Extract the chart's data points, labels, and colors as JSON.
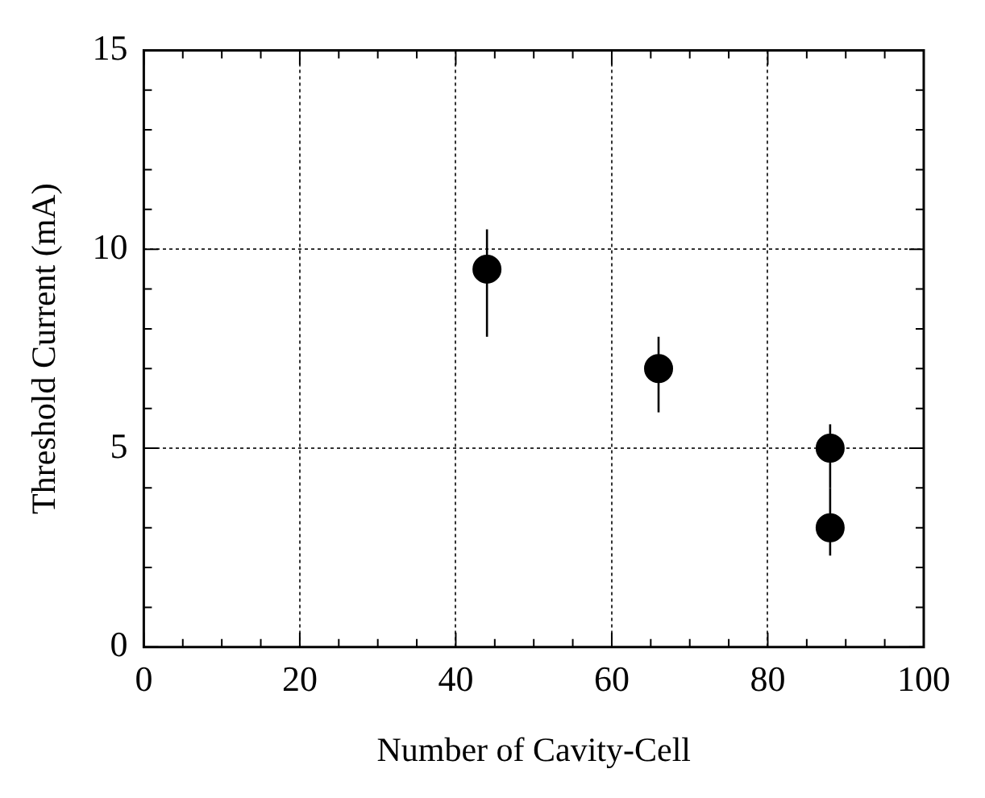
{
  "chart_data": {
    "type": "scatter",
    "xlabel": "Number of Cavity-Cell",
    "ylabel": "Threshold Current (mA)",
    "x": [
      44,
      66,
      88,
      88
    ],
    "values": [
      9.5,
      7.0,
      5.0,
      3.0
    ],
    "errors": [
      [
        7.8,
        10.5
      ],
      [
        5.9,
        7.8
      ],
      [
        4.0,
        5.6
      ],
      [
        2.3,
        4.0
      ]
    ],
    "color": "#000000",
    "marker": "circle",
    "grid": true,
    "legend": false,
    "xlim": [
      0,
      100
    ],
    "xticks": [
      0,
      {
        "value": 5,
        "label": null
      },
      {
        "value": 10,
        "label": null
      },
      {
        "value": 15,
        "label": null
      },
      20,
      {
        "value": 25,
        "label": null
      },
      {
        "value": 30,
        "label": null
      },
      {
        "value": 35,
        "label": null
      },
      40,
      {
        "value": 45,
        "label": null
      },
      {
        "value": 50,
        "label": null
      },
      {
        "value": 55,
        "label": null
      },
      60,
      {
        "value": 65,
        "label": null
      },
      {
        "value": 70,
        "label": null
      },
      {
        "value": 75,
        "label": null
      },
      80,
      {
        "value": 85,
        "label": null
      },
      {
        "value": 90,
        "label": null
      },
      {
        "value": 95,
        "label": null
      },
      100
    ],
    "ylim": [
      0,
      15
    ],
    "yticks": [
      0,
      {
        "value": 1,
        "label": null
      },
      {
        "value": 2,
        "label": null
      },
      {
        "value": 3,
        "label": null
      },
      {
        "value": 4,
        "label": null
      },
      5,
      {
        "value": 6,
        "label": null
      },
      {
        "value": 7,
        "label": null
      },
      {
        "value": 8,
        "label": null
      },
      {
        "value": 9,
        "label": null
      },
      10,
      {
        "value": 11,
        "label": null
      },
      {
        "value": 12,
        "label": null
      },
      {
        "value": 13,
        "label": null
      },
      {
        "value": 14,
        "label": null
      },
      15
    ]
  }
}
